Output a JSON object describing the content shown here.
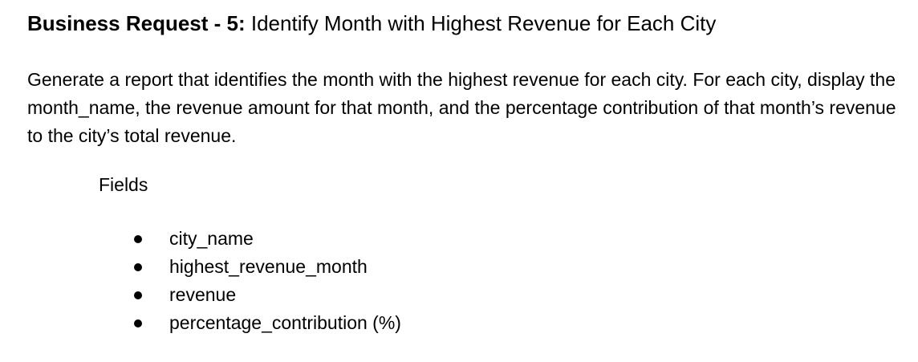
{
  "heading": {
    "label": "Business Request - 5:",
    "title": "Identify Month with Highest Revenue for Each City"
  },
  "description": "Generate a report that identifies the month with the highest revenue for each city. For each city, display the month_name, the revenue amount for that month, and the percentage contribution of that month’s revenue to the city’s total revenue.",
  "fields": {
    "label": "Fields",
    "items": [
      "city_name",
      "highest_revenue_month",
      "revenue",
      "percentage_contribution (%)"
    ]
  }
}
